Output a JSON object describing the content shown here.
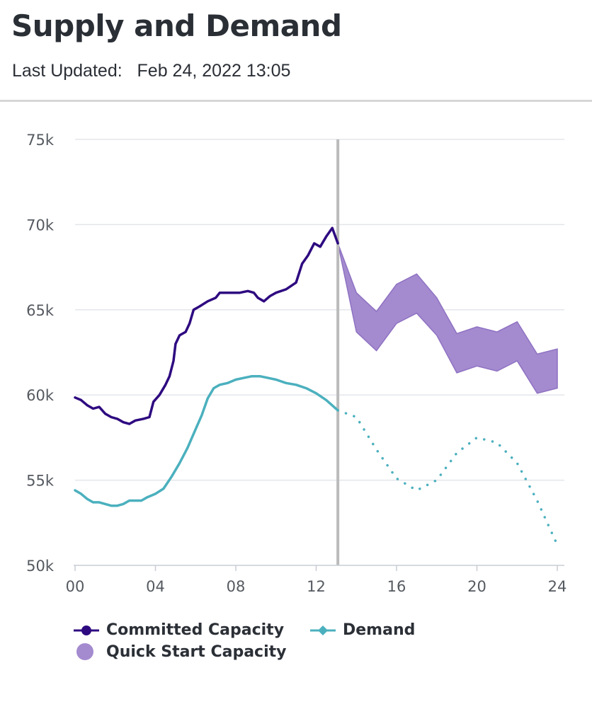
{
  "header": {
    "title": "Supply and Demand",
    "updated_label": "Last Updated:",
    "updated_value": "Feb 24, 2022 13:05"
  },
  "colors": {
    "committed": "#2e0a80",
    "demand": "#4bb0be",
    "quick_start_fill": "#a48acf",
    "quick_start_stroke": "#8f72c2",
    "grid": "#e3e6ea",
    "now_line": "#bbbbbb",
    "axis_text": "#555a60"
  },
  "legend": {
    "committed": "Committed Capacity",
    "demand": "Demand",
    "quick_start": "Quick Start Capacity"
  },
  "chart_data": {
    "type": "line",
    "xlim": [
      0,
      24
    ],
    "ylim": [
      50000,
      75000
    ],
    "x_ticks": [
      0,
      4,
      8,
      12,
      16,
      20,
      24
    ],
    "x_tick_labels": [
      "00",
      "04",
      "08",
      "12",
      "16",
      "20",
      "24"
    ],
    "y_ticks": [
      50000,
      55000,
      60000,
      65000,
      70000,
      75000
    ],
    "y_tick_labels": [
      "50k",
      "55k",
      "60k",
      "65k",
      "70k",
      "75k"
    ],
    "grid": true,
    "legend_position": "bottom",
    "current_time": 13.08,
    "series": [
      {
        "name": "Committed Capacity",
        "style": "solid",
        "points": [
          [
            0,
            59850
          ],
          [
            0.3,
            59700
          ],
          [
            0.6,
            59400
          ],
          [
            0.9,
            59200
          ],
          [
            1.2,
            59300
          ],
          [
            1.5,
            58900
          ],
          [
            1.8,
            58700
          ],
          [
            2.1,
            58600
          ],
          [
            2.4,
            58400
          ],
          [
            2.7,
            58300
          ],
          [
            3,
            58500
          ],
          [
            3.4,
            58600
          ],
          [
            3.7,
            58700
          ],
          [
            3.9,
            59600
          ],
          [
            4.2,
            60000
          ],
          [
            4.5,
            60600
          ],
          [
            4.7,
            61100
          ],
          [
            4.9,
            62000
          ],
          [
            5.0,
            63000
          ],
          [
            5.2,
            63500
          ],
          [
            5.5,
            63700
          ],
          [
            5.7,
            64200
          ],
          [
            5.9,
            65000
          ],
          [
            6.2,
            65200
          ],
          [
            6.6,
            65500
          ],
          [
            7.0,
            65700
          ],
          [
            7.2,
            66000
          ],
          [
            7.5,
            66000
          ],
          [
            7.8,
            66000
          ],
          [
            8.2,
            66000
          ],
          [
            8.6,
            66100
          ],
          [
            8.9,
            66000
          ],
          [
            9.1,
            65700
          ],
          [
            9.4,
            65500
          ],
          [
            9.7,
            65800
          ],
          [
            10.0,
            66000
          ],
          [
            10.5,
            66200
          ],
          [
            11.0,
            66600
          ],
          [
            11.3,
            67700
          ],
          [
            11.6,
            68200
          ],
          [
            11.9,
            68900
          ],
          [
            12.2,
            68700
          ],
          [
            12.5,
            69300
          ],
          [
            12.8,
            69800
          ],
          [
            13.08,
            68900
          ]
        ]
      },
      {
        "name": "Demand",
        "style": "solid",
        "points": [
          [
            0,
            54400
          ],
          [
            0.3,
            54200
          ],
          [
            0.6,
            53900
          ],
          [
            0.9,
            53700
          ],
          [
            1.2,
            53700
          ],
          [
            1.5,
            53600
          ],
          [
            1.8,
            53500
          ],
          [
            2.1,
            53500
          ],
          [
            2.4,
            53600
          ],
          [
            2.7,
            53800
          ],
          [
            3,
            53800
          ],
          [
            3.3,
            53800
          ],
          [
            3.6,
            54000
          ],
          [
            4,
            54200
          ],
          [
            4.4,
            54500
          ],
          [
            4.8,
            55200
          ],
          [
            5.2,
            56000
          ],
          [
            5.6,
            56900
          ],
          [
            6.0,
            58000
          ],
          [
            6.3,
            58800
          ],
          [
            6.6,
            59800
          ],
          [
            6.9,
            60400
          ],
          [
            7.2,
            60600
          ],
          [
            7.6,
            60700
          ],
          [
            8.0,
            60900
          ],
          [
            8.4,
            61000
          ],
          [
            8.8,
            61100
          ],
          [
            9.2,
            61100
          ],
          [
            9.6,
            61000
          ],
          [
            10.0,
            60900
          ],
          [
            10.5,
            60700
          ],
          [
            11.0,
            60600
          ],
          [
            11.5,
            60400
          ],
          [
            12.0,
            60100
          ],
          [
            12.5,
            59700
          ],
          [
            13.08,
            59100
          ]
        ]
      },
      {
        "name": "Demand (forecast)",
        "style": "dotted",
        "points": [
          [
            13.08,
            59100
          ],
          [
            14,
            58700
          ],
          [
            15,
            56800
          ],
          [
            16,
            55100
          ],
          [
            17,
            54400
          ],
          [
            18,
            55000
          ],
          [
            19,
            56600
          ],
          [
            20,
            57500
          ],
          [
            21,
            57200
          ],
          [
            22,
            56000
          ],
          [
            23,
            53800
          ],
          [
            24,
            51200
          ]
        ]
      },
      {
        "name": "Quick Start Capacity",
        "style": "band",
        "low": [
          [
            13.08,
            68900
          ],
          [
            14,
            63700
          ],
          [
            15,
            62600
          ],
          [
            16,
            64200
          ],
          [
            17,
            64800
          ],
          [
            18,
            63500
          ],
          [
            19,
            61300
          ],
          [
            20,
            61700
          ],
          [
            21,
            61400
          ],
          [
            22,
            62000
          ],
          [
            23,
            60100
          ],
          [
            24,
            60400
          ]
        ],
        "high": [
          [
            13.08,
            68900
          ],
          [
            14,
            66000
          ],
          [
            15,
            64900
          ],
          [
            16,
            66500
          ],
          [
            17,
            67100
          ],
          [
            18,
            65700
          ],
          [
            19,
            63600
          ],
          [
            20,
            64000
          ],
          [
            21,
            63700
          ],
          [
            22,
            64300
          ],
          [
            23,
            62400
          ],
          [
            24,
            62700
          ]
        ]
      }
    ]
  }
}
